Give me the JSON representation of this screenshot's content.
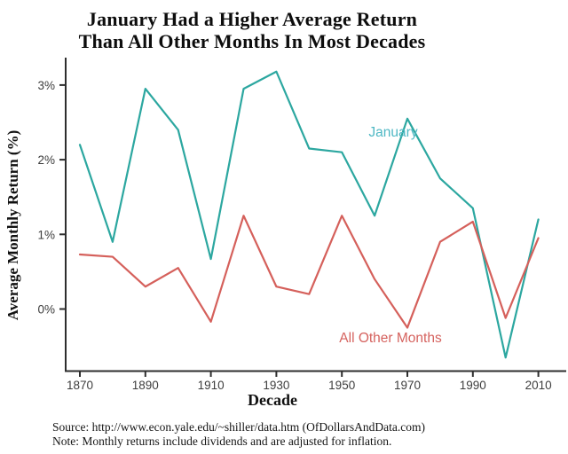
{
  "title": {
    "line1": "January Had a Higher Average Return",
    "line2": "Than All Other Months In Most Decades"
  },
  "footer": {
    "source": "Source: http://www.econ.yale.edu/~shiller/data.htm (OfDollarsAndData.com)",
    "note": "Note: Monthly returns include dividends and are adjusted for inflation."
  },
  "chart_data": {
    "type": "line",
    "title": "January Had a Higher Average Return Than All Other Months In Most Decades",
    "xlabel": "Decade",
    "ylabel": "Average Monthly Return (%)",
    "grid": false,
    "legend_position": "inline-annotations",
    "xlim": [
      1866,
      2018
    ],
    "ylim": [
      -0.83,
      3.37
    ],
    "axis_color": "#2e2e2e",
    "x": [
      1870,
      1880,
      1890,
      1900,
      1910,
      1920,
      1930,
      1940,
      1950,
      1960,
      1970,
      1980,
      1990,
      2000,
      2010
    ],
    "x_ticks": [
      {
        "value": 1870,
        "label": "1870"
      },
      {
        "value": 1890,
        "label": "1890"
      },
      {
        "value": 1910,
        "label": "1910"
      },
      {
        "value": 1930,
        "label": "1930"
      },
      {
        "value": 1950,
        "label": "1950"
      },
      {
        "value": 1970,
        "label": "1970"
      },
      {
        "value": 1990,
        "label": "1990"
      },
      {
        "value": 2010,
        "label": "2010"
      }
    ],
    "y_ticks": [
      {
        "value": 0,
        "label": "0%"
      },
      {
        "value": 1,
        "label": "1%"
      },
      {
        "value": 2,
        "label": "2%"
      },
      {
        "value": 3,
        "label": "3%"
      }
    ],
    "series": [
      {
        "id": "january",
        "name": "January",
        "color": "#2ca7a0",
        "label_color": "#4fb8c4",
        "values": [
          2.2,
          0.9,
          2.95,
          2.4,
          0.67,
          2.95,
          3.18,
          2.15,
          2.1,
          1.25,
          2.55,
          1.75,
          1.35,
          -0.65,
          1.2
        ]
      },
      {
        "id": "all-other-months",
        "name": "All Other Months",
        "color": "#d5605b",
        "label_color": "#d5625e",
        "values": [
          0.73,
          0.7,
          0.3,
          0.55,
          -0.17,
          1.25,
          0.3,
          0.2,
          1.25,
          0.4,
          -0.25,
          0.9,
          1.17,
          -0.12,
          0.95
        ]
      }
    ]
  }
}
